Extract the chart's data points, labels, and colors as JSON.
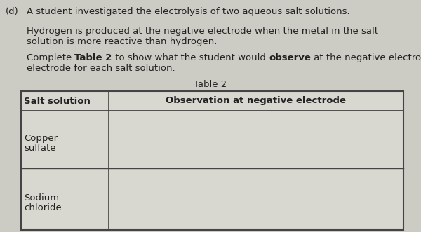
{
  "title_prefix": "(d)   ",
  "title_text": "A student investigated the electrolysis of two aqueous salt solutions.",
  "para1_line1": "Hydrogen is produced at the negative electrode when the metal in the salt",
  "para1_line2": "solution is more reactive than hydrogen.",
  "para2_parts": [
    [
      "Complete ",
      false
    ],
    [
      "Table 2",
      true
    ],
    [
      " to show what the student would ",
      false
    ],
    [
      "observe",
      true
    ],
    [
      " at the negative electrode",
      false
    ]
  ],
  "para2_line2": "electrode for each salt solution.",
  "table_title": "Table 2",
  "col1_header": "Salt solution",
  "col2_header": "Observation at negative electrode",
  "row1_col1_line1": "Copper",
  "row1_col1_line2": "sulfate",
  "row2_col1_line1": "Sodium",
  "row2_col1_line2": "chloride",
  "bg_color": "#ccccc4",
  "table_bg": "#d8d8d0",
  "text_color": "#222222",
  "border_color": "#444444",
  "font_size": 9.5
}
